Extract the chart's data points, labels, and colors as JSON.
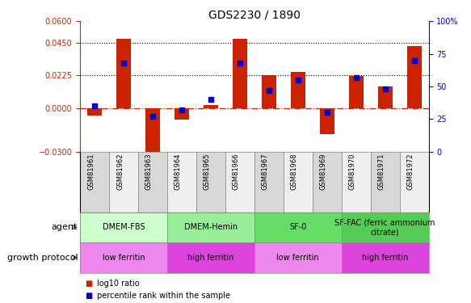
{
  "title": "GDS2230 / 1890",
  "samples": [
    "GSM81961",
    "GSM81962",
    "GSM81963",
    "GSM81964",
    "GSM81965",
    "GSM81966",
    "GSM81967",
    "GSM81968",
    "GSM81969",
    "GSM81970",
    "GSM81971",
    "GSM81972"
  ],
  "log10_ratio": [
    -0.005,
    0.048,
    -0.034,
    -0.008,
    0.002,
    0.048,
    0.023,
    0.025,
    -0.018,
    0.022,
    0.015,
    0.043
  ],
  "percentile_rank": [
    35,
    68,
    27,
    32,
    40,
    68,
    47,
    55,
    30,
    57,
    48,
    70
  ],
  "ylim_left": [
    -0.03,
    0.06
  ],
  "ylim_right": [
    0,
    100
  ],
  "yticks_left": [
    -0.03,
    0,
    0.0225,
    0.045,
    0.06
  ],
  "yticks_right": [
    0,
    25,
    50,
    75,
    100
  ],
  "hlines": [
    0.045,
    0.0225
  ],
  "bar_color": "#cc2200",
  "dot_color": "#0000cc",
  "zero_line_color": "#cc2200",
  "agent_groups": [
    {
      "label": "DMEM-FBS",
      "start": 0,
      "end": 3,
      "color": "#ccffcc"
    },
    {
      "label": "DMEM-Hemin",
      "start": 3,
      "end": 6,
      "color": "#99ee99"
    },
    {
      "label": "SF-0",
      "start": 6,
      "end": 9,
      "color": "#66dd66"
    },
    {
      "label": "SF-FAC (ferric ammonium\ncitrate)",
      "start": 9,
      "end": 12,
      "color": "#55cc55"
    }
  ],
  "protocol_groups": [
    {
      "label": "low ferritin",
      "start": 0,
      "end": 3,
      "color": "#ee88ee"
    },
    {
      "label": "high ferritin",
      "start": 3,
      "end": 6,
      "color": "#dd44dd"
    },
    {
      "label": "low ferritin",
      "start": 6,
      "end": 9,
      "color": "#ee88ee"
    },
    {
      "label": "high ferritin",
      "start": 9,
      "end": 12,
      "color": "#dd44dd"
    }
  ],
  "legend_log10_color": "#cc2200",
  "legend_percentile_color": "#0000cc",
  "agent_label": "agent",
  "protocol_label": "growth protocol",
  "bar_width": 0.5,
  "title_fontsize": 10,
  "axis_fontsize": 7,
  "label_fontsize": 8,
  "cell_fontsize": 7
}
